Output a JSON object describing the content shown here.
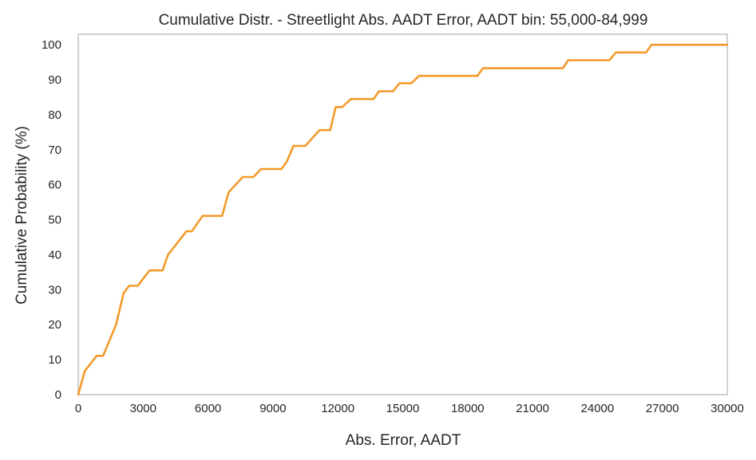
{
  "chart_data": {
    "type": "line",
    "title": "Cumulative Distr. - Streetlight Abs. AADT Error, AADT bin: 55,000-84,999",
    "xlabel": "Abs. Error, AADT",
    "ylabel": "Cumulative Probability (%)",
    "xlim": [
      0,
      30000
    ],
    "ylim": [
      0,
      103
    ],
    "grid": false,
    "xticks": [
      0,
      3000,
      6000,
      9000,
      12000,
      15000,
      18000,
      21000,
      24000,
      27000,
      30000
    ],
    "xtick_labels": [
      "0",
      "3000",
      "6000",
      "9000",
      "12000",
      "15000",
      "18000",
      "21000",
      "24000",
      "27000",
      "30000"
    ],
    "yticks": [
      0,
      10,
      20,
      30,
      40,
      50,
      60,
      70,
      80,
      90,
      100
    ],
    "ytick_labels": [
      "0",
      "10",
      "20",
      "30",
      "40",
      "50",
      "60",
      "70",
      "80",
      "90",
      "100"
    ],
    "series": [
      {
        "color": "#f39a2b",
        "x": [
          0,
          300,
          850,
          1150,
          1750,
          2100,
          2350,
          2750,
          3300,
          3900,
          4150,
          5000,
          5250,
          5750,
          6100,
          6650,
          6950,
          7600,
          8100,
          8450,
          9400,
          9650,
          9950,
          10500,
          11150,
          11650,
          11900,
          12200,
          12600,
          13650,
          13900,
          14550,
          14850,
          15400,
          15750,
          18450,
          18700,
          22400,
          22650,
          24550,
          24850,
          26250,
          26500,
          30000
        ],
        "y": [
          0,
          6.7,
          11.1,
          11.1,
          20.0,
          29.0,
          31.1,
          31.1,
          35.5,
          35.5,
          40.0,
          46.7,
          46.7,
          51.1,
          51.1,
          51.1,
          57.8,
          62.2,
          62.2,
          64.5,
          64.5,
          66.7,
          71.1,
          71.1,
          75.6,
          75.6,
          82.2,
          82.2,
          84.5,
          84.5,
          86.7,
          86.7,
          89.0,
          89.0,
          91.1,
          91.1,
          93.3,
          93.3,
          95.6,
          95.6,
          97.8,
          97.8,
          100,
          100
        ]
      }
    ]
  }
}
